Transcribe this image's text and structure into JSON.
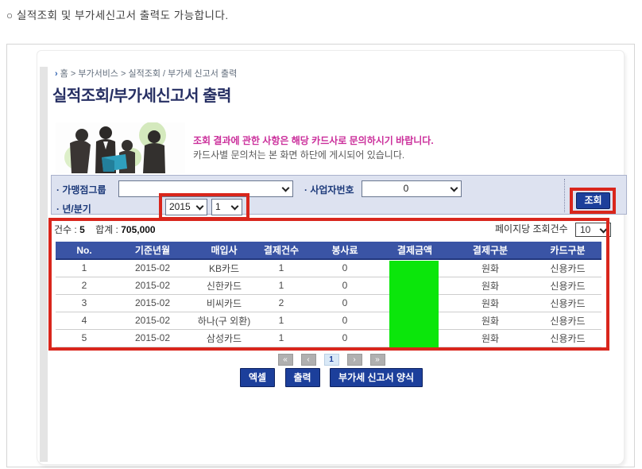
{
  "note": "○ 실적조회 및 부가세신고서 출력도 가능합니다.",
  "breadcrumb": {
    "arrow": "›",
    "text": "홈 > 부가서비스 > 실적조회 / 부가세 신고서 출력"
  },
  "title": "실적조회/부가세신고서 출력",
  "banner": {
    "line1": "조회 결과에 관한 사항은 해당 카드사로 문의하시기 바랍니다.",
    "line2": "카드사별 문의처는 본 화면 하단에 게시되어 있습니다."
  },
  "search_form": {
    "merchant_group_label": "· 가맹점그룹",
    "merchant_group_value": "",
    "business_number_label": "· 사업자번호",
    "business_number_value": "0",
    "year_quarter_label": "· 년/분기",
    "year_value": "2015",
    "quarter_value": "1",
    "search_button_label": "조회"
  },
  "summary": {
    "count_label": "건수 :",
    "count_value": "5",
    "total_label": "합계 :",
    "total_value": "705,000",
    "per_page_label": "페이지당 조회건수",
    "per_page_value": "10"
  },
  "table": {
    "headers": [
      "No.",
      "기준년월",
      "매입사",
      "결제건수",
      "봉사료",
      "결제금액",
      "결제구분",
      "카드구분"
    ],
    "rows": [
      [
        "1",
        "2015-02",
        "KB카드",
        "1",
        "0",
        "",
        "원화",
        "신용카드"
      ],
      [
        "2",
        "2015-02",
        "신한카드",
        "1",
        "0",
        "",
        "원화",
        "신용카드"
      ],
      [
        "3",
        "2015-02",
        "비씨카드",
        "2",
        "0",
        "",
        "원화",
        "신용카드"
      ],
      [
        "4",
        "2015-02",
        "하나(구 외환)",
        "1",
        "0",
        "",
        "원화",
        "신용카드"
      ],
      [
        "5",
        "2015-02",
        "삼성카드",
        "1",
        "0",
        "",
        "원화",
        "신용카드"
      ]
    ],
    "amount_column_masked": true
  },
  "pagination": {
    "buttons": [
      "«",
      "‹",
      "1",
      "›",
      "»"
    ],
    "current": "1"
  },
  "actions": {
    "excel": "엑셀",
    "print": "출력",
    "vat_form": "부가세 신고서 양식"
  },
  "colors": {
    "highlight_red": "#d9261c",
    "mask_green": "#0be60b",
    "header_blue": "#3a54a5",
    "button_navy": "#1c3f9b",
    "magenta": "#cb2f9b",
    "label_navy": "#1d3a7a"
  }
}
